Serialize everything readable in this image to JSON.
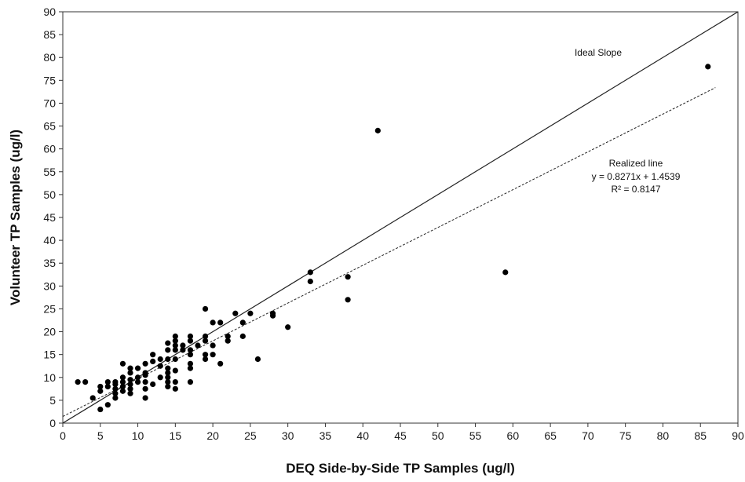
{
  "chart_data": {
    "type": "scatter",
    "xlabel": "DEQ Side-by-Side TP Samples (ug/l)",
    "ylabel": "Volunteer TP Samples (ug/l)",
    "xlim": [
      0,
      90
    ],
    "ylim": [
      0,
      90
    ],
    "xticks": [
      "0",
      "5",
      "10",
      "15",
      "20",
      "25",
      "30",
      "35",
      "40",
      "45",
      "50",
      "55",
      "60",
      "65",
      "70",
      "75",
      "80",
      "85",
      "90"
    ],
    "yticks": [
      "0",
      "5",
      "10",
      "15",
      "20",
      "25",
      "30",
      "35",
      "40",
      "45",
      "50",
      "55",
      "60",
      "65",
      "70",
      "75",
      "80",
      "85",
      "90"
    ],
    "grid": false,
    "series": [
      {
        "points": [
          [
            2,
            9
          ],
          [
            3,
            9
          ],
          [
            4,
            5.5
          ],
          [
            5,
            3
          ],
          [
            5,
            7
          ],
          [
            5,
            8
          ],
          [
            6,
            4
          ],
          [
            6,
            8
          ],
          [
            6,
            9
          ],
          [
            7,
            5.5
          ],
          [
            7,
            6.5
          ],
          [
            7,
            7.5
          ],
          [
            7,
            8.5
          ],
          [
            7,
            9
          ],
          [
            8,
            7
          ],
          [
            8,
            8
          ],
          [
            8,
            9
          ],
          [
            8,
            10
          ],
          [
            8,
            13
          ],
          [
            9,
            6.5
          ],
          [
            9,
            7.5
          ],
          [
            9,
            8.5
          ],
          [
            9,
            9.5
          ],
          [
            9,
            11
          ],
          [
            9,
            12
          ],
          [
            10,
            9
          ],
          [
            10,
            10
          ],
          [
            10,
            12
          ],
          [
            11,
            5.5
          ],
          [
            11,
            7.5
          ],
          [
            11,
            9
          ],
          [
            11,
            10.5
          ],
          [
            11,
            11
          ],
          [
            11,
            13
          ],
          [
            12,
            8.5
          ],
          [
            12,
            13.5
          ],
          [
            12,
            15
          ],
          [
            13,
            10
          ],
          [
            13,
            12.5
          ],
          [
            13,
            14
          ],
          [
            14,
            8
          ],
          [
            14,
            9
          ],
          [
            14,
            10
          ],
          [
            14,
            11
          ],
          [
            14,
            12
          ],
          [
            14,
            14
          ],
          [
            14,
            16
          ],
          [
            14,
            17.5
          ],
          [
            15,
            7.5
          ],
          [
            15,
            9
          ],
          [
            15,
            11.5
          ],
          [
            15,
            14
          ],
          [
            15,
            16
          ],
          [
            15,
            17
          ],
          [
            15,
            18
          ],
          [
            15,
            19
          ],
          [
            16,
            16
          ],
          [
            16,
            17
          ],
          [
            17,
            9
          ],
          [
            17,
            12
          ],
          [
            17,
            13
          ],
          [
            17,
            15
          ],
          [
            17,
            16
          ],
          [
            17,
            18
          ],
          [
            17,
            19
          ],
          [
            18,
            17
          ],
          [
            19,
            14
          ],
          [
            19,
            15
          ],
          [
            19,
            18
          ],
          [
            19,
            19
          ],
          [
            19,
            25
          ],
          [
            20,
            15
          ],
          [
            20,
            17
          ],
          [
            20,
            22
          ],
          [
            21,
            13
          ],
          [
            21,
            22
          ],
          [
            22,
            18
          ],
          [
            22,
            19
          ],
          [
            23,
            24
          ],
          [
            24,
            19
          ],
          [
            24,
            22
          ],
          [
            25,
            24
          ],
          [
            26,
            14
          ],
          [
            28,
            23.5
          ],
          [
            28,
            24
          ],
          [
            30,
            21
          ],
          [
            33,
            31
          ],
          [
            33,
            33
          ],
          [
            38,
            27
          ],
          [
            38,
            32
          ],
          [
            42,
            64
          ],
          [
            59,
            33
          ],
          [
            86,
            78
          ]
        ]
      }
    ],
    "lines": [
      {
        "name": "Ideal Slope",
        "slope": 1,
        "intercept": 0,
        "x_range": [
          0,
          90
        ],
        "style": "solid"
      },
      {
        "name": "Realized line",
        "slope": 0.8271,
        "intercept": 1.4539,
        "x_range": [
          0,
          87
        ],
        "style": "dashed"
      }
    ],
    "annotations": {
      "ideal": "Ideal Slope",
      "realized_title": "Realized line",
      "equation": "y = 0.8271x + 1.4539",
      "r2": "R² = 0.8147"
    }
  }
}
